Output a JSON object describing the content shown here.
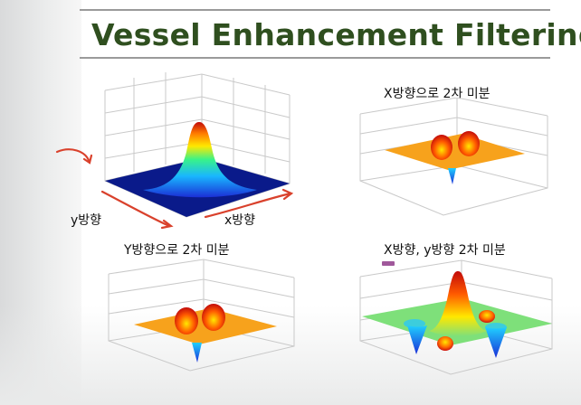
{
  "slide": {
    "title": "Vessel Enhancement Filtering"
  },
  "panels": [
    {
      "id": "gaussian",
      "caption": "",
      "axis_labels": {
        "y": "y방향",
        "x": "x방향"
      }
    },
    {
      "id": "xx",
      "caption": "X방향으로 2차 미분"
    },
    {
      "id": "yy",
      "caption": "Y방향으로 2차 미분"
    },
    {
      "id": "xy",
      "caption": "X방향, y방향 2차 미분"
    }
  ],
  "colors": {
    "title_text": "#2f4f1f",
    "annotation_red": "#d9412c",
    "base_blue": "#0a1a8a",
    "base_orange": "#f5a623",
    "base_green": "#7ee07a"
  },
  "icons": [
    "red-arrow-annotation",
    "purple-marker"
  ]
}
